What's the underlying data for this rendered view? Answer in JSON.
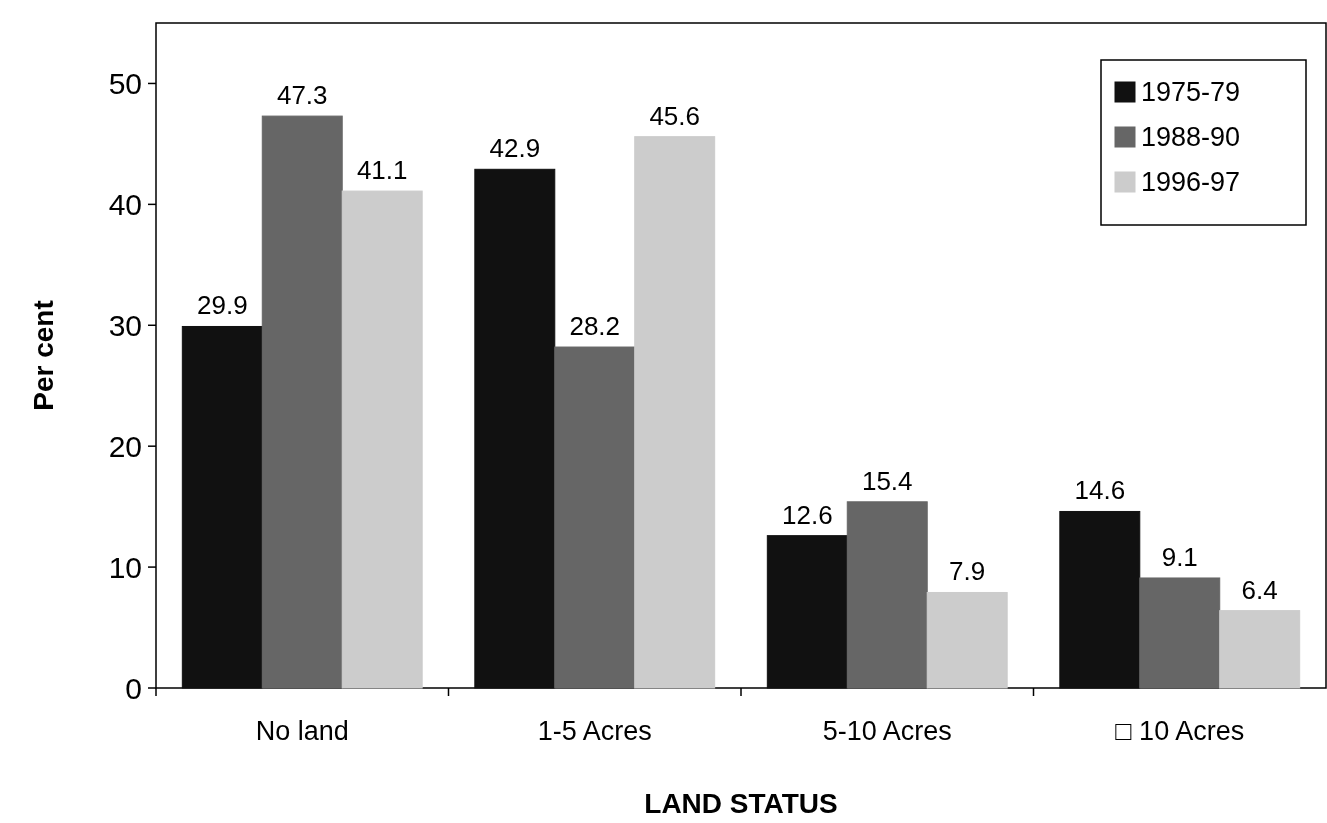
{
  "chart_data": {
    "type": "bar",
    "xlabel": "LAND STATUS",
    "ylabel": "Per cent",
    "categories": [
      "No land",
      "1-5 Acres",
      "5-10 Acres",
      "□ 10 Acres"
    ],
    "series": [
      {
        "name": "1975-79",
        "color": "#111111",
        "values": [
          29.9,
          42.9,
          12.6,
          14.6
        ]
      },
      {
        "name": "1988-90",
        "color": "#666666",
        "values": [
          47.3,
          28.2,
          15.4,
          9.1
        ]
      },
      {
        "name": "1996-97",
        "color": "#cccccc",
        "values": [
          41.1,
          45.6,
          7.9,
          6.4
        ]
      }
    ],
    "ylim": [
      0,
      55
    ],
    "yticks": [
      0,
      10,
      20,
      30,
      40,
      50
    ],
    "grid": false,
    "legend": "top right",
    "data_labels": true
  }
}
